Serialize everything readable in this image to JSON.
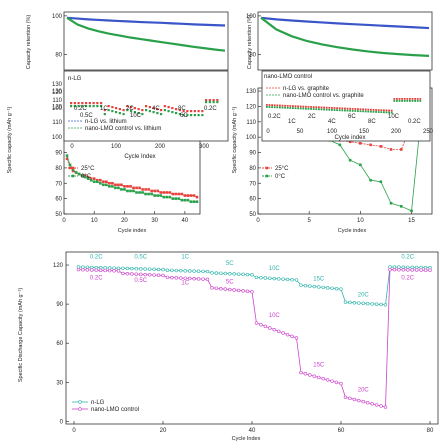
{
  "chart_data": [
    {
      "id": "top-left",
      "type": "line",
      "xlabel": "Cycle index",
      "ylabel": "Specific capacity (mAh g⁻¹)",
      "xlim": [
        0,
        45
      ],
      "ylim": [
        50,
        132
      ],
      "yticks": [
        50,
        60,
        70,
        80,
        90,
        100,
        110,
        120,
        130
      ],
      "xticks": [
        0,
        10,
        20,
        30,
        40
      ],
      "legend": [
        {
          "name": "25°C",
          "color": "#e8403a"
        },
        {
          "name": "0°C",
          "color": "#2aa04a"
        }
      ],
      "series": [
        {
          "name": "25°C",
          "color": "#e8403a",
          "x": [
            1,
            2,
            3,
            4,
            5,
            6,
            7,
            8,
            9,
            10,
            11,
            12,
            13,
            14,
            15,
            16,
            17,
            18,
            19,
            20,
            21,
            22,
            23,
            24,
            25,
            26,
            27,
            28,
            29,
            30,
            31,
            32,
            33,
            34,
            35,
            36,
            37,
            38,
            39,
            40,
            41,
            42,
            43,
            44
          ],
          "values": [
            86,
            80,
            78,
            77,
            76,
            75,
            75,
            74,
            73,
            73,
            72,
            72,
            71,
            71,
            70,
            70,
            69,
            69,
            69,
            68,
            68,
            68,
            67,
            67,
            67,
            66,
            66,
            66,
            65,
            65,
            65,
            64,
            64,
            64,
            64,
            63,
            63,
            63,
            63,
            62,
            62,
            62,
            62,
            61
          ]
        },
        {
          "name": "0°C",
          "color": "#2aa04a",
          "x": [
            1,
            2,
            3,
            4,
            5,
            6,
            7,
            8,
            9,
            10,
            11,
            12,
            13,
            14,
            15,
            16,
            17,
            18,
            19,
            20,
            21,
            22,
            23,
            24,
            25,
            26,
            27,
            28,
            29,
            30,
            31,
            32,
            33,
            34,
            35,
            36,
            37,
            38,
            39,
            40,
            41,
            42,
            43,
            44
          ],
          "values": [
            88,
            82,
            79,
            77,
            76,
            75,
            74,
            73,
            72,
            71,
            71,
            70,
            69,
            69,
            68,
            68,
            67,
            67,
            66,
            66,
            65,
            65,
            65,
            64,
            64,
            64,
            63,
            63,
            63,
            62,
            62,
            62,
            61,
            61,
            61,
            60,
            60,
            60,
            59,
            59,
            59,
            58,
            58,
            58
          ]
        }
      ],
      "inset_top": {
        "yticks": [
          80,
          100
        ],
        "ylabel": "Capacity retention (%)",
        "series": [
          {
            "name": "blue",
            "color": "#3a55c8",
            "values": [
              99,
              98.6,
              98.2,
              97.9,
              97.6,
              97.3,
              97.1,
              96.8,
              96.6,
              96.4,
              96.1,
              95.9,
              95.6,
              95.4,
              95.2,
              95.0
            ]
          },
          {
            "name": "green",
            "color": "#2aa04a",
            "values": [
              99,
              95.5,
              93.5,
              92,
              90.8,
              89.8,
              88.8,
              88,
              87.2,
              86.4,
              85.6,
              84.8,
              84,
              83.3,
              82.6,
              82.0
            ]
          }
        ]
      },
      "inset_rate": {
        "label": "n-LG",
        "xticks": [
          0,
          100,
          200,
          300
        ],
        "legend": [
          "n-LG vs. lithium",
          "nano-LMO control vs. lithium"
        ],
        "rates_upper": [
          "0.2C",
          "1C",
          "2C",
          "4C",
          "8C",
          "0.2C"
        ],
        "rates_lower": [
          "0.5C",
          "10C",
          "6C"
        ]
      }
    },
    {
      "id": "top-right",
      "type": "line",
      "xlabel": "Cycle index",
      "ylabel": "Specific capacity (mAh g⁻¹)",
      "xlim": [
        0,
        17
      ],
      "ylim": [
        50,
        132
      ],
      "yticks": [
        50,
        60,
        70,
        80,
        90,
        100,
        110,
        120,
        130
      ],
      "xticks": [
        0,
        5,
        10,
        15
      ],
      "legend": [
        {
          "name": "25°C",
          "color": "#e8403a"
        },
        {
          "name": "0°C",
          "color": "#2aa04a"
        }
      ],
      "series": [
        {
          "name": "25°C",
          "color": "#e8403a",
          "x": [
            1,
            2,
            3,
            4,
            5,
            6,
            7,
            8,
            9,
            10,
            11,
            12,
            13,
            14,
            15,
            16
          ],
          "values": [
            118,
            113,
            106,
            102,
            101,
            100,
            99,
            98,
            97,
            96,
            95,
            94,
            92,
            92,
            108,
            122
          ]
        },
        {
          "name": "0°C",
          "color": "#2aa04a",
          "x": [
            1,
            2,
            3,
            4,
            5,
            6,
            7,
            8,
            9,
            10,
            11,
            12,
            13,
            14,
            15,
            16
          ],
          "values": [
            112,
            108,
            102,
            101,
            100,
            99,
            98,
            95,
            85,
            82,
            72,
            71,
            57,
            55,
            52,
            118
          ]
        }
      ],
      "inset_top": {
        "yticks": [
          80,
          100
        ],
        "ylabel": "Capacity retention (%)",
        "series": [
          {
            "name": "blue",
            "color": "#3a55c8",
            "values": [
              99,
              98.2,
              97.6,
              97.1,
              96.6,
              96.1,
              95.7,
              95.3,
              94.9,
              94.5,
              94.1,
              93.7
            ]
          },
          {
            "name": "green",
            "color": "#2aa04a",
            "values": [
              99,
              93,
              89.5,
              87,
              85.2,
              83.8,
              82.6,
              81.6,
              80.8,
              80.2,
              79.7,
              79.3
            ]
          }
        ]
      },
      "inset_rate": {
        "label": "nano-LMO control",
        "legend": [
          "n-LG vs. graphite",
          "nano-LMO control vs. graphite"
        ],
        "xticks": [
          0,
          50,
          100,
          150,
          200,
          250
        ],
        "xlabel": "Cycle index",
        "rates": [
          "0.2C",
          "1C",
          "2C",
          "4C",
          "6C",
          "8C",
          "10C",
          "0.2C"
        ]
      }
    },
    {
      "id": "bottom",
      "type": "scatter",
      "xlabel": "Cycle Index",
      "ylabel": "Specific Discharge Capacity (mAh g⁻¹)",
      "xlim": [
        0,
        80
      ],
      "ylim": [
        -2,
        130
      ],
      "xticks": [
        0,
        20,
        40,
        60,
        80
      ],
      "yticks": [
        0,
        30,
        60,
        90,
        120
      ],
      "legend": [
        {
          "name": "n-LG",
          "color": "#2fb5aa"
        },
        {
          "name": "nano-LMO control",
          "color": "#cc44cc"
        }
      ],
      "series": [
        {
          "name": "n-LG",
          "color": "#2fb5aa",
          "segments": [
            {
              "x0": 1,
              "x1": 10,
              "y0": 118.5,
              "y1": 117.5
            },
            {
              "x0": 11,
              "x1": 20,
              "y0": 117.5,
              "y1": 116.5
            },
            {
              "x0": 21,
              "x1": 30,
              "y0": 116,
              "y1": 115
            },
            {
              "x0": 31,
              "x1": 40,
              "y0": 114,
              "y1": 112.5
            },
            {
              "x0": 41,
              "x1": 50,
              "y0": 110.5,
              "y1": 108.5
            },
            {
              "x0": 51,
              "x1": 60,
              "y0": 104.5,
              "y1": 101.5
            },
            {
              "x0": 61,
              "x1": 70,
              "y0": 91.5,
              "y1": 89.5
            },
            {
              "x0": 71,
              "x1": 80,
              "y0": 118.5,
              "y1": 118
            }
          ]
        },
        {
          "name": "nano-LMO control",
          "color": "#cc44cc",
          "segments": [
            {
              "x0": 1,
              "x1": 10,
              "y0": 116.5,
              "y1": 115.5
            },
            {
              "x0": 11,
              "x1": 20,
              "y0": 113.5,
              "y1": 112
            },
            {
              "x0": 21,
              "x1": 30,
              "y0": 110.5,
              "y1": 109
            },
            {
              "x0": 31,
              "x1": 40,
              "y0": 102.5,
              "y1": 99.5
            },
            {
              "x0": 41,
              "x1": 50,
              "y0": 75.5,
              "y1": 64
            },
            {
              "x0": 51,
              "x1": 60,
              "y0": 37.5,
              "y1": 29
            },
            {
              "x0": 61,
              "x1": 70,
              "y0": 18.5,
              "y1": 11
            },
            {
              "x0": 71,
              "x1": 80,
              "y0": 116.5,
              "y1": 116
            }
          ]
        }
      ],
      "annotations_nlg": [
        {
          "text": "0.2C",
          "x": 5,
          "y": 125
        },
        {
          "text": "0.5C",
          "x": 15,
          "y": 125
        },
        {
          "text": "1C",
          "x": 25,
          "y": 125
        },
        {
          "text": "5C",
          "x": 35,
          "y": 120
        },
        {
          "text": "10C",
          "x": 45,
          "y": 116
        },
        {
          "text": "15C",
          "x": 55,
          "y": 108
        },
        {
          "text": "20C",
          "x": 65,
          "y": 96
        },
        {
          "text": "0.2C",
          "x": 75,
          "y": 125
        }
      ],
      "annotations_lmo": [
        {
          "text": "0.2C",
          "x": 5,
          "y": 109
        },
        {
          "text": "0.5C",
          "x": 15,
          "y": 107
        },
        {
          "text": "1C",
          "x": 25,
          "y": 105
        },
        {
          "text": "5C",
          "x": 35,
          "y": 106
        },
        {
          "text": "10C",
          "x": 45,
          "y": 80
        },
        {
          "text": "15C",
          "x": 55,
          "y": 42
        },
        {
          "text": "20C",
          "x": 65,
          "y": 23
        },
        {
          "text": "0.2C",
          "x": 75,
          "y": 109
        }
      ]
    }
  ]
}
